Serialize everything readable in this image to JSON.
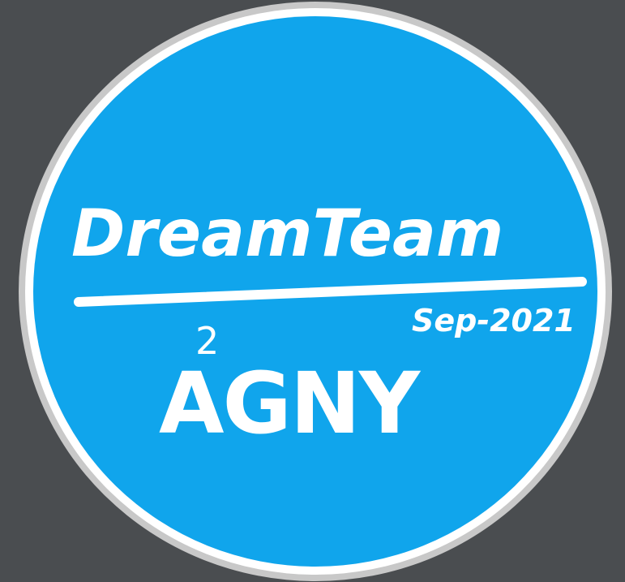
{
  "badge": {
    "title": "DreamTeam",
    "date": "Sep-2021",
    "code": "AGNY",
    "exponent": "2",
    "colors": {
      "background": "#4a4d50",
      "ring_outer": "#c8c8c8",
      "ring_inner": "#ffffff",
      "fill": "#10a5ec",
      "text": "#ffffff"
    }
  }
}
